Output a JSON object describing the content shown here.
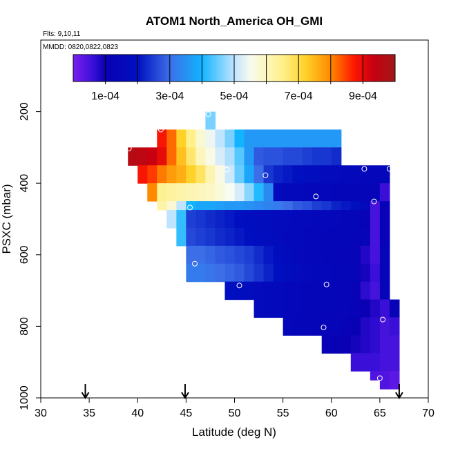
{
  "chart_data": {
    "type": "heatmap",
    "title": "ATOM1 North_America OH_GMI",
    "flights_label": "Flts: 9,10,11",
    "dates_label": "MMDD: 0820,0822,0823",
    "xlabel": "Latitude (deg N)",
    "ylabel": "PSXC (mbar)",
    "xlim": [
      30,
      70
    ],
    "ylim": [
      1000,
      0
    ],
    "x_ticks": [
      30,
      35,
      40,
      45,
      50,
      55,
      60,
      65,
      70
    ],
    "y_ticks": [
      200,
      400,
      600,
      800,
      1000
    ],
    "colorbar": {
      "range": [
        0,
        0.001
      ],
      "ticks": [
        0.0001,
        0.0003,
        0.0005,
        0.0007,
        0.0009
      ],
      "tick_labels": [
        "1e-04",
        "3e-04",
        "5e-04",
        "7e-04",
        "9e-04"
      ]
    },
    "flight_markers_latitude": [
      34.6,
      44.9,
      67.0
    ],
    "cell_size": {
      "dlat": 1,
      "dp": 25
    },
    "rows": [
      {
        "p": 200,
        "lat_start": 47,
        "values": [
          0.00046
        ]
      },
      {
        "p": 225,
        "lat_start": 47,
        "values": [
          0.00046
        ]
      },
      {
        "p": 250,
        "lat_start": 42,
        "values": [
          0.00088,
          0.00082,
          0.00072,
          0.00065,
          0.00058,
          0.00054,
          0.0005,
          0.00046,
          0.0004,
          0.00036,
          0.00036,
          0.00036,
          0.00036,
          0.00036,
          0.00036,
          0.00036,
          0.00036,
          0.00036,
          0.00036
        ]
      },
      {
        "p": 275,
        "lat_start": 42,
        "values": [
          0.00088,
          0.00082,
          0.00072,
          0.00065,
          0.00058,
          0.00054,
          0.0005,
          0.00046,
          0.0004,
          0.00036,
          0.00036,
          0.00036,
          0.00036,
          0.00036,
          0.00036,
          0.00036,
          0.00036,
          0.00036,
          0.00036
        ]
      },
      {
        "p": 300,
        "lat_start": 39,
        "values": [
          0.00096,
          0.00095,
          0.00093,
          0.0009,
          0.00082,
          0.00074,
          0.00067,
          0.0006,
          0.00056,
          0.00052,
          0.00049,
          0.00044,
          0.00036,
          0.00028,
          0.00027,
          0.00027,
          0.00026,
          0.00026,
          0.00025,
          0.00024,
          0.00024,
          0.00023
        ]
      },
      {
        "p": 325,
        "lat_start": 39,
        "values": [
          0.00096,
          0.00095,
          0.00093,
          0.0009,
          0.00082,
          0.00074,
          0.00067,
          0.0006,
          0.00056,
          0.00052,
          0.00049,
          0.00044,
          0.00036,
          0.00028,
          0.00027,
          0.00027,
          0.00026,
          0.00026,
          0.00025,
          0.00024,
          0.00024,
          0.00023
        ]
      },
      {
        "p": 350,
        "lat_start": 40,
        "values": [
          0.00088,
          0.00085,
          0.00081,
          0.00078,
          0.00076,
          0.00072,
          0.00068,
          0.00061,
          0.00056,
          0.00051,
          0.00045,
          0.00038,
          0.0003,
          0.00024,
          0.00022,
          0.00021,
          0.0002,
          0.00019,
          0.00018,
          0.00017,
          0.00017,
          0.00016,
          0.00016,
          0.00015,
          0.00015,
          0.00015
        ]
      },
      {
        "p": 375,
        "lat_start": 40,
        "values": [
          0.00088,
          0.00085,
          0.00081,
          0.00078,
          0.00076,
          0.00072,
          0.00068,
          0.00061,
          0.00056,
          0.00051,
          0.00045,
          0.00038,
          0.0003,
          0.00024,
          0.00022,
          0.00021,
          0.0002,
          0.00019,
          0.00018,
          0.00017,
          0.00017,
          0.00016,
          0.00016,
          0.00015,
          0.00015,
          0.00015
        ]
      },
      {
        "p": 400,
        "lat_start": 41,
        "values": [
          0.0008,
          0.00064,
          0.00063,
          0.00062,
          0.00061,
          0.0006,
          0.00059,
          0.00057,
          0.00055,
          0.00052,
          0.00047,
          0.00041,
          0.00034,
          0.00017,
          0.00016,
          0.00016,
          0.00015,
          0.00015,
          0.00015,
          0.00014,
          0.00014,
          0.00014,
          0.00013,
          0.00013,
          6e-05
        ]
      },
      {
        "p": 425,
        "lat_start": 41,
        "values": [
          0.0008,
          0.00064,
          0.00063,
          0.00062,
          0.00061,
          0.0006,
          0.00059,
          0.00057,
          0.00055,
          0.00052,
          0.00047,
          0.00041,
          0.00034,
          0.00017,
          0.00016,
          0.00016,
          0.00015,
          0.00015,
          0.00015,
          0.00014,
          0.00014,
          0.00014,
          0.00013,
          0.00013,
          6e-05
        ]
      },
      {
        "p": 450,
        "lat_start": 42,
        "values": [
          0.00062,
          0.00058,
          0.0005,
          0.0004,
          0.00038,
          0.00038,
          0.00037,
          0.00036,
          0.00036,
          0.00035,
          0.00034,
          0.00033,
          0.00032,
          0.0003,
          0.00028,
          0.00027,
          0.00025,
          0.00024,
          0.00022,
          0.00021,
          0.0002,
          0.00016,
          5e-05,
          0.00012
        ]
      },
      {
        "p": 475,
        "lat_start": 43,
        "values": [
          0.0005,
          0.00042,
          0.00025,
          0.00024,
          0.00023,
          0.00022,
          0.00021,
          0.0002,
          0.00019,
          0.00018,
          0.00018,
          0.00017,
          0.00017,
          0.00016,
          0.00016,
          0.00015,
          0.00015,
          0.00015,
          0.00014,
          0.00014,
          0.00012,
          5e-05,
          0.00012
        ]
      },
      {
        "p": 500,
        "lat_start": 43,
        "values": [
          0.0005,
          0.00042,
          0.00025,
          0.00024,
          0.00023,
          0.00022,
          0.00021,
          0.0002,
          0.00019,
          0.00018,
          0.00018,
          0.00017,
          0.00017,
          0.00016,
          0.00016,
          0.00015,
          0.00015,
          0.00015,
          0.00014,
          0.00014,
          0.00012,
          5e-05,
          0.00012
        ]
      },
      {
        "p": 525,
        "lat_start": 44,
        "values": [
          0.00042,
          0.00026,
          0.00025,
          0.00024,
          0.00023,
          0.00022,
          0.00021,
          0.0002,
          0.00019,
          0.00018,
          0.00017,
          0.00016,
          0.00016,
          0.00015,
          0.00015,
          0.00014,
          0.00014,
          0.00014,
          0.00013,
          0.00013,
          5e-05,
          0.00012
        ]
      },
      {
        "p": 550,
        "lat_start": 44,
        "values": [
          0.00042,
          0.00026,
          0.00025,
          0.00024,
          0.00023,
          0.00022,
          0.00021,
          0.0002,
          0.00019,
          0.00018,
          0.00017,
          0.00016,
          0.00016,
          0.00015,
          0.00015,
          0.00014,
          0.00014,
          0.00014,
          0.00013,
          0.00013,
          5e-05,
          0.00012
        ]
      },
      {
        "p": 575,
        "lat_start": 45,
        "values": [
          0.0003,
          0.0003,
          0.00029,
          0.00028,
          0.00027,
          0.00026,
          0.00025,
          0.00023,
          0.00021,
          0.00019,
          0.00017,
          0.00016,
          0.00015,
          0.00015,
          0.00014,
          0.00014,
          0.00013,
          0.00013,
          8e-05,
          5e-05,
          0.00013
        ]
      },
      {
        "p": 600,
        "lat_start": 45,
        "values": [
          0.0003,
          0.0003,
          0.00029,
          0.00028,
          0.00027,
          0.00026,
          0.00025,
          0.00023,
          0.00021,
          0.00019,
          0.00017,
          0.00016,
          0.00015,
          0.00015,
          0.00014,
          0.00014,
          0.00013,
          0.00013,
          8e-05,
          5e-05,
          0.00013
        ]
      },
      {
        "p": 625,
        "lat_start": 45,
        "values": [
          0.00032,
          0.00032,
          0.00031,
          0.0003,
          0.00029,
          0.00028,
          0.00026,
          0.00024,
          0.00022,
          0.0002,
          0.00018,
          0.00017,
          0.00016,
          0.00015,
          0.00015,
          0.00014,
          0.00014,
          0.00013,
          9e-05,
          6e-05,
          0.00013
        ]
      },
      {
        "p": 650,
        "lat_start": 45,
        "values": [
          0.00032,
          0.00032,
          0.00031,
          0.0003,
          0.00029,
          0.00028,
          0.00026,
          0.00024,
          0.00022,
          0.0002,
          0.00018,
          0.00017,
          0.00016,
          0.00015,
          0.00015,
          0.00014,
          0.00014,
          0.00013,
          9e-05,
          6e-05,
          0.00013
        ]
      },
      {
        "p": 675,
        "lat_start": 49,
        "values": [
          0.0002,
          0.00019,
          0.00018,
          0.00017,
          0.00016,
          0.00016,
          0.00015,
          0.00015,
          0.00014,
          0.00014,
          0.00014,
          0.00013,
          0.00013,
          0.00012,
          7e-05,
          5e-05,
          0.00013
        ]
      },
      {
        "p": 700,
        "lat_start": 49,
        "values": [
          0.0002,
          0.00019,
          0.00018,
          0.00017,
          0.00016,
          0.00016,
          0.00015,
          0.00015,
          0.00014,
          0.00014,
          0.00014,
          0.00013,
          0.00013,
          0.00012,
          7e-05,
          5e-05,
          0.00013
        ]
      },
      {
        "p": 725,
        "lat_start": 52,
        "values": [
          0.00017,
          0.00016,
          0.00016,
          0.00015,
          0.00015,
          0.00014,
          0.00014,
          0.00014,
          0.00013,
          0.00013,
          0.00012,
          0.0001,
          8e-05,
          6e-05,
          0.00012
        ]
      },
      {
        "p": 750,
        "lat_start": 52,
        "values": [
          0.00017,
          0.00016,
          0.00016,
          0.00015,
          0.00015,
          0.00014,
          0.00014,
          0.00014,
          0.00013,
          0.00013,
          0.00012,
          0.0001,
          8e-05,
          6e-05,
          0.00012
        ]
      },
      {
        "p": 775,
        "lat_start": 55,
        "values": [
          0.00015,
          0.00014,
          0.00014,
          0.00013,
          0.00013,
          0.00013,
          0.00012,
          0.00011,
          8e-05,
          7e-05,
          5e-05,
          6e-05
        ]
      },
      {
        "p": 800,
        "lat_start": 55,
        "values": [
          0.00015,
          0.00014,
          0.00014,
          0.00013,
          0.00013,
          0.00013,
          0.00012,
          0.00011,
          8e-05,
          7e-05,
          5e-05,
          6e-05
        ]
      },
      {
        "p": 825,
        "lat_start": 59,
        "values": [
          0.00012,
          0.00011,
          0.0001,
          9e-05,
          8e-05,
          7e-05,
          5e-05,
          5e-05
        ]
      },
      {
        "p": 850,
        "lat_start": 59,
        "values": [
          0.00012,
          0.00011,
          0.0001,
          9e-05,
          8e-05,
          7e-05,
          5e-05,
          5e-05
        ]
      },
      {
        "p": 875,
        "lat_start": 62,
        "values": [
          6e-05,
          6e-05,
          6e-05,
          5e-05,
          5e-05
        ]
      },
      {
        "p": 900,
        "lat_start": 62,
        "values": [
          6e-05,
          6e-05,
          6e-05,
          5e-05,
          5e-05
        ]
      },
      {
        "p": 925,
        "lat_start": 64,
        "values": [
          4e-05,
          4e-05,
          3e-05
        ]
      },
      {
        "p": 950,
        "lat_start": 65,
        "values": [
          4e-05,
          3e-05
        ]
      }
    ],
    "observations": [
      {
        "lat": 39.1,
        "p": 303
      },
      {
        "lat": 42.4,
        "p": 250
      },
      {
        "lat": 47.3,
        "p": 207
      },
      {
        "lat": 49.2,
        "p": 362
      },
      {
        "lat": 51.6,
        "p": 215
      },
      {
        "lat": 53.2,
        "p": 378
      },
      {
        "lat": 57.1,
        "p": 226
      },
      {
        "lat": 63.4,
        "p": 360
      },
      {
        "lat": 66.0,
        "p": 360
      },
      {
        "lat": 58.4,
        "p": 437
      },
      {
        "lat": 64.4,
        "p": 451
      },
      {
        "lat": 45.4,
        "p": 468
      },
      {
        "lat": 45.9,
        "p": 625
      },
      {
        "lat": 50.5,
        "p": 686
      },
      {
        "lat": 59.5,
        "p": 683
      },
      {
        "lat": 59.2,
        "p": 803
      },
      {
        "lat": 65.3,
        "p": 781
      },
      {
        "lat": 65.0,
        "p": 945
      }
    ]
  }
}
